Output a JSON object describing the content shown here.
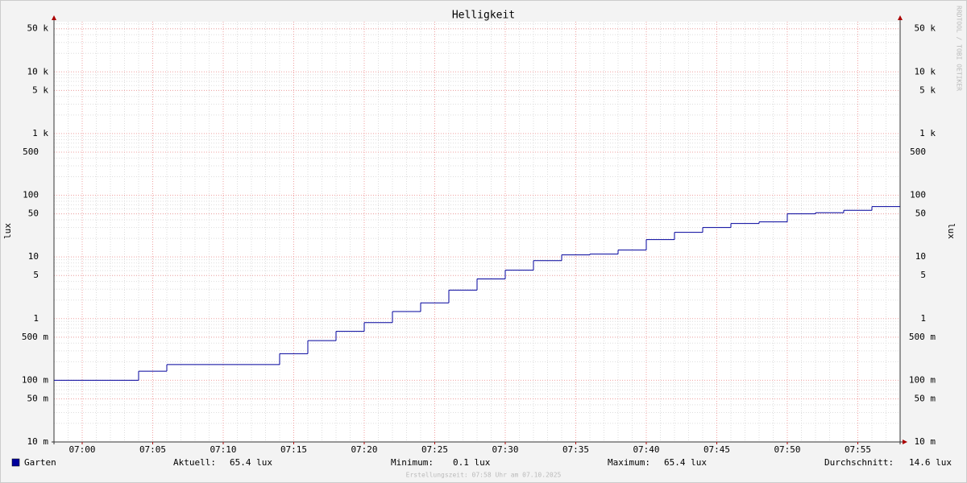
{
  "chart_data": {
    "type": "line",
    "step": "post",
    "title": "Helligkeit",
    "ylabel": "lux",
    "watermark": "RRDTOOL / TOBI OETIKER",
    "footer": "Erstellungszeit: 07:58 Uhr am 07.10.2025",
    "log_scale": true,
    "grid": true,
    "xlim": [
      "06:58",
      "07:58"
    ],
    "xticks": [
      "07:00",
      "07:05",
      "07:10",
      "07:15",
      "07:20",
      "07:25",
      "07:30",
      "07:35",
      "07:40",
      "07:45",
      "07:50",
      "07:55"
    ],
    "ylim": [
      0.01,
      65000
    ],
    "yticks": [
      {
        "value": 0.01,
        "label": "10 m"
      },
      {
        "value": 0.05,
        "label": "50 m"
      },
      {
        "value": 0.1,
        "label": "100 m"
      },
      {
        "value": 0.5,
        "label": "500 m"
      },
      1,
      5,
      10,
      50,
      100,
      500,
      {
        "value": 1000,
        "label": "1 k"
      },
      {
        "value": 5000,
        "label": "5 k"
      },
      {
        "value": 10000,
        "label": "10 k"
      },
      {
        "value": 50000,
        "label": "50 k"
      }
    ],
    "x": [
      "06:58",
      "07:04",
      "07:06",
      "07:14",
      "07:16",
      "07:18",
      "07:20",
      "07:22",
      "07:24",
      "07:26",
      "07:28",
      "07:30",
      "07:32",
      "07:34",
      "07:36",
      "07:38",
      "07:40",
      "07:42",
      "07:44",
      "07:46",
      "07:48",
      "07:50",
      "07:52",
      "07:54",
      "07:56"
    ],
    "series": [
      {
        "name": "Garten",
        "color": "#00009c",
        "values": [
          0.1,
          0.14,
          0.18,
          0.27,
          0.44,
          0.62,
          0.86,
          1.3,
          1.8,
          2.9,
          4.4,
          6.1,
          8.7,
          10.8,
          11.1,
          12.9,
          19.1,
          25,
          30,
          34.8,
          37,
          50,
          52,
          57,
          65.4
        ]
      }
    ],
    "stats": [
      {
        "label": "Aktuell:",
        "value": "65.4 lux"
      },
      {
        "label": "Minimum:",
        "value": "0.1 lux"
      },
      {
        "label": "Maximum:",
        "value": "65.4 lux"
      },
      {
        "label": "Durchschnitt:",
        "value": "14.6 lux"
      }
    ]
  }
}
